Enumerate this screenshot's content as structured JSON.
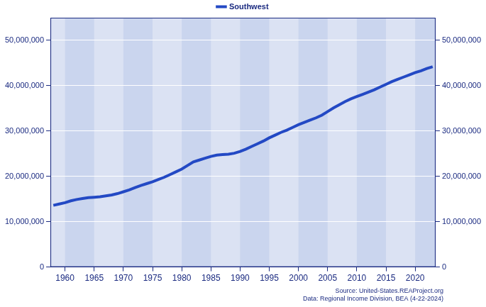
{
  "chart_data": {
    "type": "line",
    "x": [
      1958,
      1959,
      1960,
      1961,
      1962,
      1963,
      1964,
      1965,
      1966,
      1967,
      1968,
      1969,
      1970,
      1971,
      1972,
      1973,
      1974,
      1975,
      1976,
      1977,
      1978,
      1979,
      1980,
      1981,
      1982,
      1983,
      1984,
      1985,
      1986,
      1987,
      1988,
      1989,
      1990,
      1991,
      1992,
      1993,
      1994,
      1995,
      1996,
      1997,
      1998,
      1999,
      2000,
      2001,
      2002,
      2003,
      2004,
      2005,
      2006,
      2007,
      2008,
      2009,
      2010,
      2011,
      2012,
      2013,
      2014,
      2015,
      2016,
      2017,
      2018,
      2019,
      2020,
      2021,
      2022,
      2023
    ],
    "series": [
      {
        "name": "Southwest",
        "color": "#2349c4",
        "values": [
          13600000,
          13900000,
          14200000,
          14600000,
          14900000,
          15100000,
          15300000,
          15400000,
          15500000,
          15700000,
          15900000,
          16200000,
          16600000,
          17000000,
          17500000,
          18000000,
          18400000,
          18800000,
          19300000,
          19800000,
          20400000,
          21000000,
          21600000,
          22400000,
          23200000,
          23600000,
          24000000,
          24400000,
          24700000,
          24800000,
          24900000,
          25100000,
          25500000,
          26000000,
          26600000,
          27200000,
          27800000,
          28500000,
          29100000,
          29700000,
          30200000,
          30800000,
          31400000,
          31900000,
          32400000,
          32900000,
          33500000,
          34300000,
          35100000,
          35800000,
          36500000,
          37100000,
          37600000,
          38100000,
          38600000,
          39100000,
          39700000,
          40300000,
          40900000,
          41400000,
          41900000,
          42400000,
          42900000,
          43300000,
          43800000,
          44200000
        ]
      }
    ],
    "xlim": [
      1957.5,
      2023.5
    ],
    "xticks": [
      1960,
      1965,
      1970,
      1975,
      1980,
      1985,
      1990,
      1995,
      2000,
      2005,
      2010,
      2015,
      2020
    ],
    "ylim": [
      0,
      55000000
    ],
    "yticks": [
      0,
      {
        "value": 10000000,
        "label": "10,000,000"
      },
      {
        "value": 20000000,
        "label": "20,000,000"
      },
      {
        "value": 30000000,
        "label": "30,000,000"
      },
      {
        "value": 40000000,
        "label": "40,000,000"
      },
      {
        "value": 50000000,
        "label": "50,000,000"
      }
    ],
    "y2lim": [
      0,
      55000000
    ],
    "y2ticks": [
      0,
      {
        "value": 10000000,
        "label": "10,000,000"
      },
      {
        "value": 20000000,
        "label": "20,000,000"
      },
      {
        "value": 30000000,
        "label": "30,000,000"
      },
      {
        "value": 40000000,
        "label": "40,000,000"
      },
      {
        "value": 50000000,
        "label": "50,000,000"
      }
    ],
    "grid": true,
    "legend": "top",
    "annotations": [
      "Source: United-States.REAProject.org",
      "Data: Regional Income Division, BEA (4-22-2024)"
    ]
  }
}
